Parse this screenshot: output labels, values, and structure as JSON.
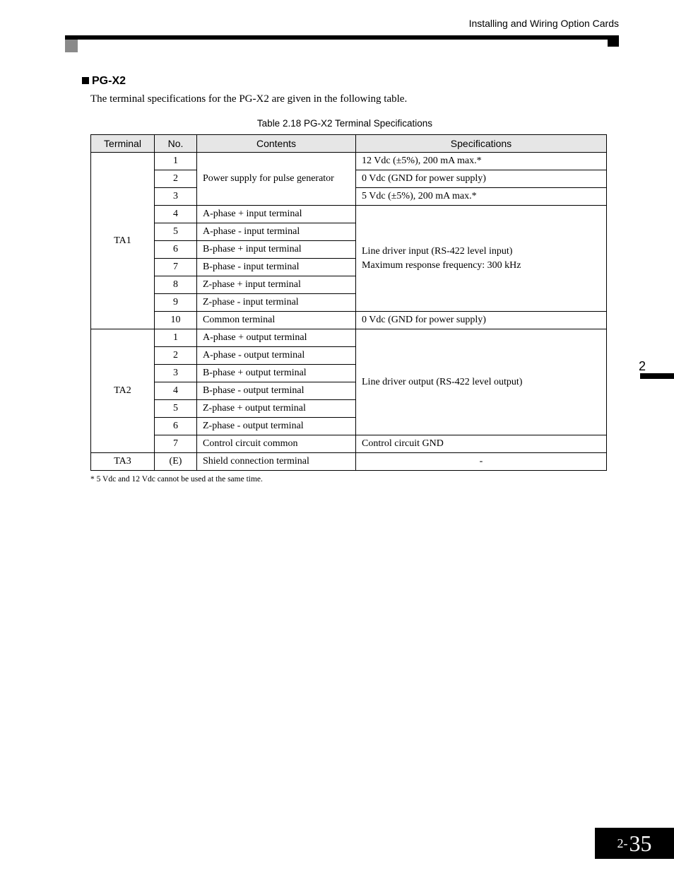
{
  "header": {
    "running_title": "Installing and Wiring Option Cards"
  },
  "section": {
    "title": "PG-X2",
    "intro": "The terminal specifications for the PG-X2 are given in the following table.",
    "table_caption": "Table 2.18  PG-X2 Terminal Specifications"
  },
  "table": {
    "columns": [
      "Terminal",
      "No.",
      "Contents",
      "Specifications"
    ],
    "groups": [
      {
        "terminal": "TA1",
        "rows": [
          {
            "no": "1",
            "contents": null,
            "spec": "12 Vdc (±5%), 200 mA max.*"
          },
          {
            "no": "2",
            "contents": null,
            "spec": "0 Vdc (GND for power supply)"
          },
          {
            "no": "3",
            "contents": null,
            "spec": "5 Vdc (±5%), 200 mA max.*"
          },
          {
            "no": "4",
            "contents": "A-phase + input terminal",
            "spec": null
          },
          {
            "no": "5",
            "contents": "A-phase - input terminal",
            "spec": null
          },
          {
            "no": "6",
            "contents": "B-phase + input terminal",
            "spec": null
          },
          {
            "no": "7",
            "contents": "B-phase - input terminal",
            "spec": null
          },
          {
            "no": "8",
            "contents": "Z-phase + input terminal",
            "spec": null
          },
          {
            "no": "9",
            "contents": "Z-phase - input terminal",
            "spec": null
          },
          {
            "no": "10",
            "contents": "Common terminal",
            "spec": "0 Vdc (GND for power supply)"
          }
        ],
        "merged_contents_0": "Power supply for pulse generator",
        "merged_spec_3": {
          "line1": "Line driver input (RS-422 level input)",
          "line2": "Maximum response frequency: 300 kHz"
        }
      },
      {
        "terminal": "TA2",
        "rows": [
          {
            "no": "1",
            "contents": "A-phase + output terminal",
            "spec": null
          },
          {
            "no": "2",
            "contents": "A-phase - output terminal",
            "spec": null
          },
          {
            "no": "3",
            "contents": "B-phase + output terminal",
            "spec": null
          },
          {
            "no": "4",
            "contents": "B-phase - output terminal",
            "spec": null
          },
          {
            "no": "5",
            "contents": "Z-phase + output terminal",
            "spec": null
          },
          {
            "no": "6",
            "contents": "Z-phase - output terminal",
            "spec": null
          },
          {
            "no": "7",
            "contents": "Control circuit common",
            "spec": "Control circuit GND"
          }
        ],
        "merged_spec_0": "Line driver output (RS-422 level output)"
      },
      {
        "terminal": "TA3",
        "rows": [
          {
            "no": "(E)",
            "contents": "Shield connection terminal",
            "spec": "-"
          }
        ]
      }
    ]
  },
  "footnote": "*   5 Vdc and 12 Vdc cannot be used at the same time.",
  "side_tab": "2",
  "page_number": {
    "prefix": "2-",
    "num": "35"
  },
  "colors": {
    "header_bar": "#000000",
    "gray_tab": "#8a8a8a",
    "table_header_bg": "#e6e6e6",
    "text": "#000000",
    "page_bg": "#ffffff"
  }
}
